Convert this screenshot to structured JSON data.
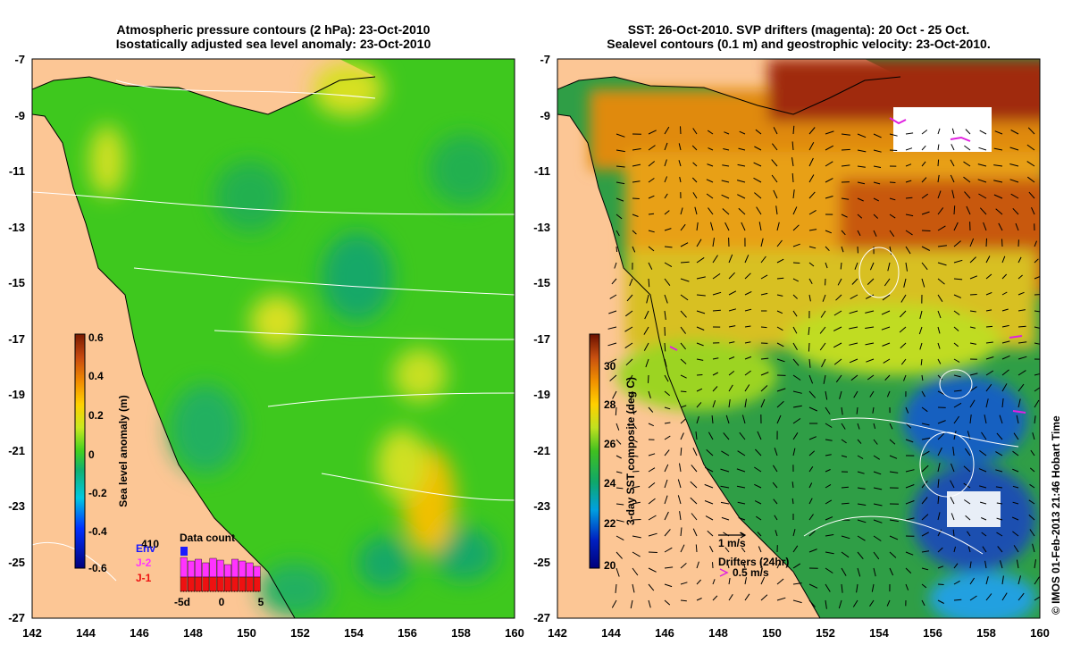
{
  "left_panel": {
    "title_line1": "Atmospheric pressure contours (2 hPa): 23-Oct-2010",
    "title_line2": "Isostatically adjusted sea level anomaly: 23-Oct-2010",
    "x_ticks": [
      "142",
      "144",
      "146",
      "148",
      "150",
      "152",
      "154",
      "156",
      "158",
      "160"
    ],
    "y_ticks": [
      "-7",
      "-9",
      "-11",
      "-13",
      "-15",
      "-17",
      "-19",
      "-21",
      "-23",
      "-25",
      "-27"
    ],
    "colorbar": {
      "label": "Sea level anomaly (m)",
      "ticks": [
        "0.6",
        "0.4",
        "0.2",
        "0",
        "-0.2",
        "-0.4",
        "-0.6"
      ],
      "range": [
        -0.6,
        0.6
      ]
    },
    "data_count": {
      "title": "Data count",
      "max_label": "410",
      "x_ticks": [
        "-5d",
        "0",
        "5"
      ],
      "legend": [
        {
          "label": "Env",
          "color": "#1a1aff"
        },
        {
          "label": "J-2",
          "color": "#ff33ff"
        },
        {
          "label": "J-1",
          "color": "#ee1111"
        }
      ]
    }
  },
  "right_panel": {
    "title_line1": "SST: 26-Oct-2010. SVP drifters (magenta): 20 Oct - 25 Oct.",
    "title_line2": "Sealevel contours (0.1 m) and geostrophic velocity: 23-Oct-2010.",
    "x_ticks": [
      "142",
      "144",
      "146",
      "148",
      "150",
      "152",
      "154",
      "156",
      "158",
      "160"
    ],
    "y_ticks": [
      "-7",
      "-9",
      "-11",
      "-13",
      "-15",
      "-17",
      "-19",
      "-21",
      "-23",
      "-25",
      "-27"
    ],
    "colorbar": {
      "label": "3-day SST composite (deg C)",
      "ticks": [
        "30",
        "28",
        "26",
        "24",
        "22",
        "20"
      ],
      "range": [
        19.5,
        31.5
      ]
    },
    "velocity_scale_label": "1 m/s",
    "drifters_label": "Drifters (24hr)",
    "drifters_scale_label": "0.5 m/s"
  },
  "credit": "© IMOS 01-Feb-2013 21:46 Hobart Time",
  "colors": {
    "land": "#fcc695",
    "ocean_left": "#3ec81e",
    "ocean_right": "#2f9e46",
    "warm_sst": "#d46a10",
    "drifter": "#e020e0"
  }
}
